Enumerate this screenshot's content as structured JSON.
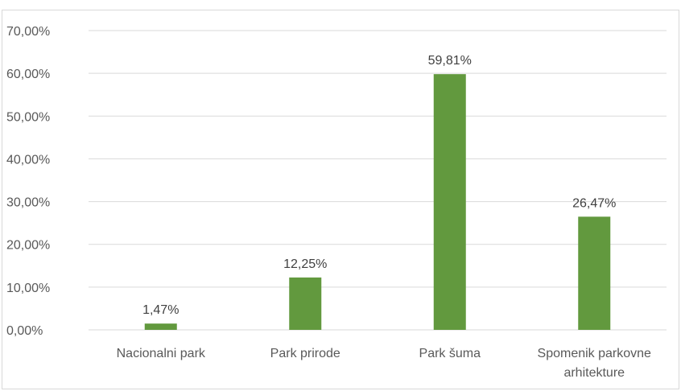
{
  "chart_data": {
    "type": "bar",
    "categories": [
      [
        "Nacionalni park"
      ],
      [
        "Park prirode"
      ],
      [
        "Park šuma"
      ],
      [
        "Spomenik parkovne",
        "arhitekture"
      ]
    ],
    "values": [
      1.47,
      12.25,
      59.81,
      26.47
    ],
    "data_labels": [
      "1,47%",
      "12,25%",
      "59,81%",
      "26,47%"
    ],
    "yticks": [
      0,
      10,
      20,
      30,
      40,
      50,
      60,
      70
    ],
    "ytick_labels": [
      "0,00%",
      "10,00%",
      "20,00%",
      "30,00%",
      "40,00%",
      "50,00%",
      "60,00%",
      "70,00%"
    ],
    "ylim": [
      0,
      70
    ],
    "grid": true,
    "bar_color": "#62993e",
    "grid_color": "#d9d9d9",
    "title": "",
    "xlabel": "",
    "ylabel": ""
  }
}
